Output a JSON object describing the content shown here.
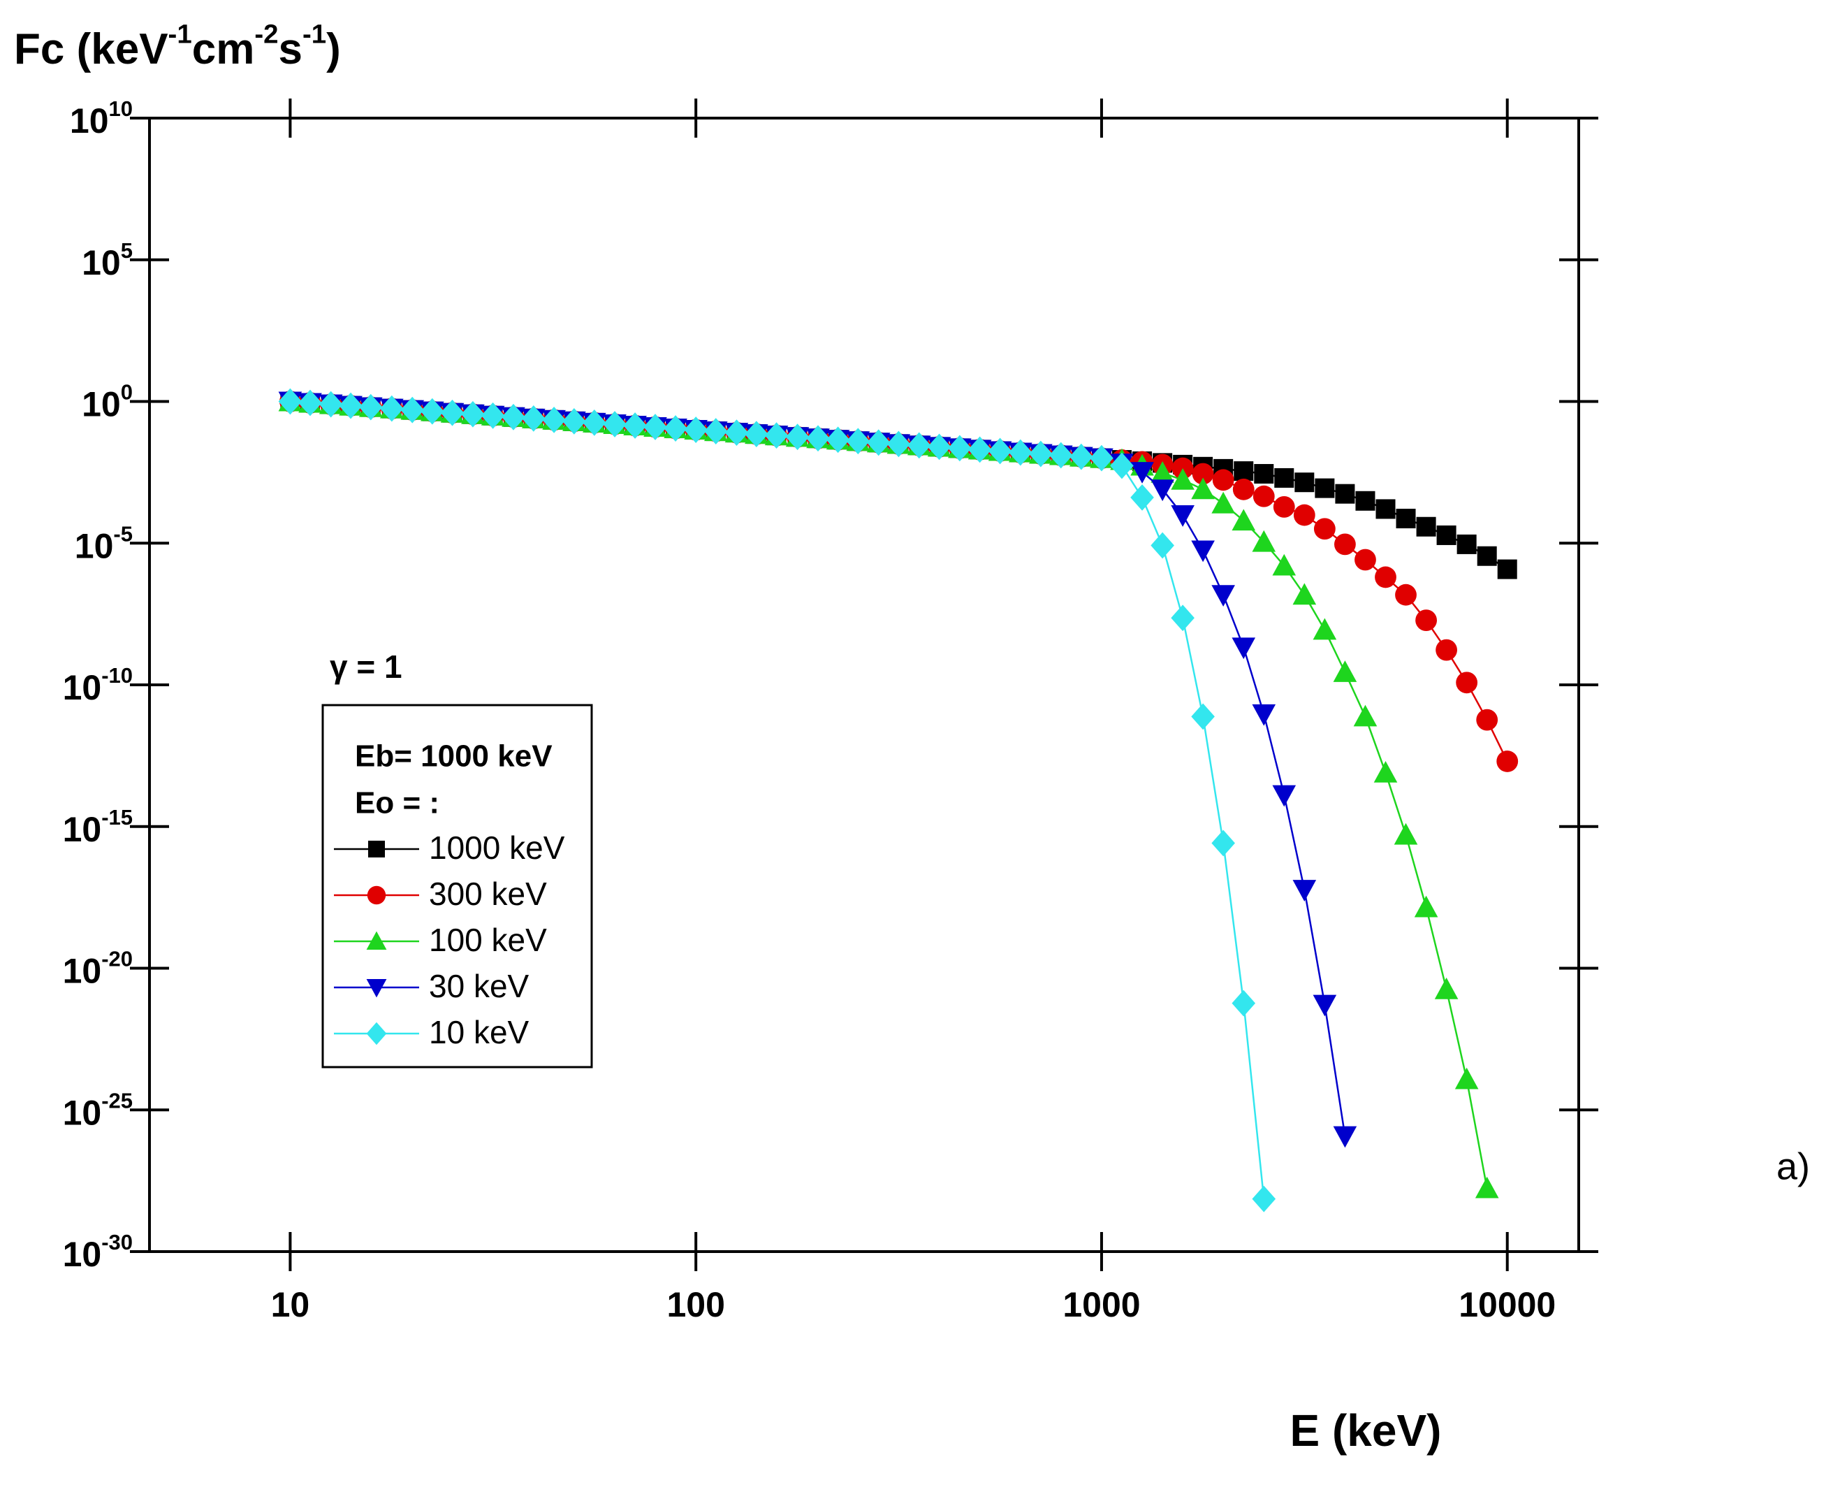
{
  "chart_data": {
    "type": "scatter-line",
    "y_label": "Fc (keV^-1cm^-2s^-1)",
    "x_label": "E (keV)",
    "annotations": [
      "γ = 1",
      "a)"
    ],
    "legend_title": [
      "Eb= 1000 keV",
      "Eo = :"
    ],
    "log_x": true,
    "log_y": true,
    "xlim": [
      4.5,
      15000
    ],
    "ylim": [
      1e-30,
      10000000000.0
    ],
    "xticks": [
      10,
      100,
      1000,
      10000
    ],
    "yticks": [
      {
        "value": 10000000000.0,
        "label": "10^10"
      },
      {
        "value": 100000.0,
        "label": "10^5"
      },
      {
        "value": 1,
        "label": "10^0"
      },
      {
        "value": 1e-05,
        "label": "10^-5"
      },
      {
        "value": 1e-10,
        "label": "10^-10"
      },
      {
        "value": 1e-15,
        "label": "10^-15"
      },
      {
        "value": 1e-20,
        "label": "10^-20"
      },
      {
        "value": 1e-25,
        "label": "10^-25"
      },
      {
        "value": 1e-30,
        "label": "10^-30"
      }
    ],
    "x": [
      10,
      11.2,
      12.6,
      14.1,
      15.8,
      17.8,
      20.0,
      22.4,
      25.1,
      28.2,
      31.6,
      35.5,
      39.8,
      44.7,
      50.1,
      56.2,
      63.1,
      70.8,
      79.4,
      89.1,
      100,
      112,
      126,
      141,
      158,
      178,
      200,
      224,
      251,
      282,
      316,
      355,
      398,
      447,
      501,
      562,
      631,
      708,
      794,
      891,
      1000,
      1122,
      1259,
      1413,
      1585,
      1778,
      1995,
      2239,
      2512,
      2818,
      3162,
      3548,
      3981,
      4467,
      5012,
      5623,
      6310,
      7079,
      7943,
      8913,
      10000
    ],
    "series": [
      {
        "name": "1000 keV",
        "color": "#000000",
        "marker": "square",
        "values": [
          1,
          0.891,
          0.794,
          0.708,
          0.631,
          0.562,
          0.501,
          0.447,
          0.398,
          0.355,
          0.316,
          0.282,
          0.251,
          0.224,
          0.2,
          0.178,
          0.158,
          0.141,
          0.126,
          0.112,
          0.1,
          0.0891,
          0.0794,
          0.0708,
          0.0631,
          0.0562,
          0.0501,
          0.0447,
          0.0398,
          0.0355,
          0.0316,
          0.0282,
          0.0251,
          0.0224,
          0.02,
          0.0178,
          0.0158,
          0.0141,
          0.0126,
          0.0112,
          0.01,
          0.0087,
          0.0078,
          0.0068,
          0.0059,
          0.005,
          0.0042,
          0.0035,
          0.0028,
          0.002,
          0.0014,
          0.00087,
          0.00055,
          0.00031,
          0.00016,
          7.4e-05,
          3.8e-05,
          1.9e-05,
          9.1e-06,
          3.5e-06,
          1.2e-06
        ]
      },
      {
        "name": "300 keV",
        "color": "#e00000",
        "marker": "circle",
        "values": [
          1,
          0.891,
          0.794,
          0.708,
          0.631,
          0.562,
          0.501,
          0.447,
          0.398,
          0.355,
          0.316,
          0.282,
          0.251,
          0.224,
          0.2,
          0.178,
          0.158,
          0.141,
          0.126,
          0.112,
          0.1,
          0.0891,
          0.0794,
          0.0708,
          0.0631,
          0.0562,
          0.0501,
          0.0447,
          0.0398,
          0.0355,
          0.0316,
          0.0282,
          0.0251,
          0.0224,
          0.02,
          0.0178,
          0.0158,
          0.0141,
          0.0126,
          0.0112,
          0.01,
          0.0085,
          0.0074,
          0.0059,
          0.0044,
          0.0028,
          0.0017,
          0.00079,
          0.00045,
          0.00019,
          9.8e-05,
          3.2e-05,
          9.1e-06,
          2.6e-06,
          6.3e-07,
          1.5e-07,
          1.9e-08,
          1.7e-09,
          1.2e-10,
          5.8e-12,
          2e-13
        ]
      },
      {
        "name": "100 keV",
        "color": "#1ed51e",
        "marker": "triangle-up",
        "values": [
          1,
          0.891,
          0.794,
          0.708,
          0.631,
          0.562,
          0.501,
          0.447,
          0.398,
          0.355,
          0.316,
          0.282,
          0.251,
          0.224,
          0.2,
          0.178,
          0.158,
          0.141,
          0.126,
          0.112,
          0.1,
          0.0891,
          0.0794,
          0.0708,
          0.0631,
          0.0562,
          0.0501,
          0.0447,
          0.0398,
          0.0355,
          0.0316,
          0.0282,
          0.0251,
          0.0224,
          0.02,
          0.0178,
          0.0158,
          0.0141,
          0.0126,
          0.0112,
          0.01,
          0.0085,
          0.0054,
          0.003,
          0.0017,
          0.00079,
          0.00025,
          6.2e-05,
          1.1e-05,
          1.6e-06,
          1.5e-07,
          8.7e-09,
          2.8e-10,
          7.6e-12,
          7.9e-14,
          5.1e-16,
          1.4e-18,
          1.8e-21,
          1.2e-24,
          1.7e-28,
          null
        ]
      },
      {
        "name": "30 keV",
        "color": "#0000cc",
        "marker": "triangle-down",
        "values": [
          1,
          0.891,
          0.794,
          0.708,
          0.631,
          0.562,
          0.501,
          0.447,
          0.398,
          0.355,
          0.316,
          0.282,
          0.251,
          0.224,
          0.2,
          0.178,
          0.158,
          0.141,
          0.126,
          0.112,
          0.1,
          0.0891,
          0.0794,
          0.0708,
          0.0631,
          0.0562,
          0.0501,
          0.0447,
          0.0398,
          0.0355,
          0.0316,
          0.0282,
          0.0251,
          0.0224,
          0.02,
          0.0178,
          0.0158,
          0.0141,
          0.0126,
          0.0112,
          0.01,
          0.0065,
          0.0033,
          0.00079,
          9.8e-05,
          5.6e-06,
          1.5e-07,
          2.1e-09,
          9.3e-12,
          1.3e-14,
          5.9e-18,
          5.2e-22,
          1.2e-26,
          null,
          null,
          null,
          null,
          null,
          null,
          null,
          null
        ]
      },
      {
        "name": "10 keV",
        "color": "#33e6ee",
        "marker": "diamond",
        "values": [
          1,
          0.891,
          0.794,
          0.708,
          0.631,
          0.562,
          0.501,
          0.447,
          0.398,
          0.355,
          0.316,
          0.282,
          0.251,
          0.224,
          0.2,
          0.178,
          0.158,
          0.141,
          0.126,
          0.112,
          0.1,
          0.0891,
          0.0794,
          0.0708,
          0.0631,
          0.0562,
          0.0501,
          0.0447,
          0.0398,
          0.0355,
          0.0316,
          0.0282,
          0.0251,
          0.0224,
          0.02,
          0.0178,
          0.0158,
          0.0141,
          0.0126,
          0.0112,
          0.01,
          0.0054,
          0.00041,
          8.3e-06,
          2.3e-08,
          7.6e-12,
          2.6e-16,
          5.8e-22,
          7.2e-29,
          null,
          null,
          null,
          null,
          null,
          null,
          null,
          null,
          null,
          null,
          null,
          null
        ]
      }
    ]
  }
}
